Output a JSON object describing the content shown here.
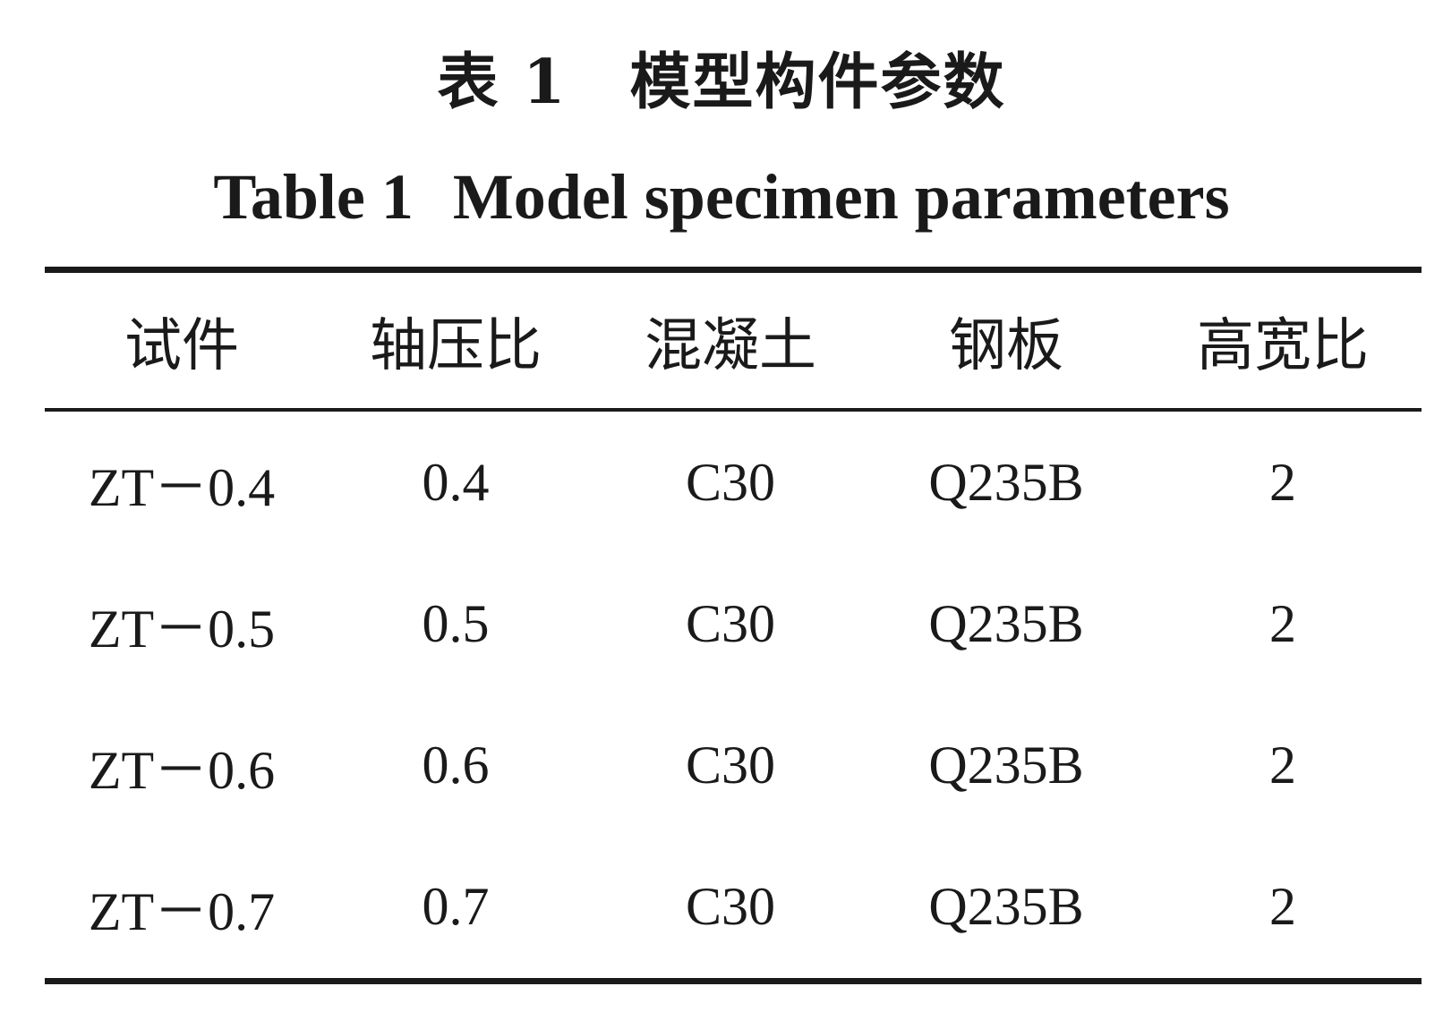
{
  "title": {
    "cn": "表 1　模型构件参数",
    "en_label": "Table 1",
    "en_text": "Model specimen parameters"
  },
  "table": {
    "headers": [
      "试件",
      "轴压比",
      "混凝土",
      "钢板",
      "高宽比"
    ],
    "rows": [
      [
        "ZT－0.4",
        "0.4",
        "C30",
        "Q235B",
        "2"
      ],
      [
        "ZT－0.5",
        "0.5",
        "C30",
        "Q235B",
        "2"
      ],
      [
        "ZT－0.6",
        "0.6",
        "C30",
        "Q235B",
        "2"
      ],
      [
        "ZT－0.7",
        "0.7",
        "C30",
        "Q235B",
        "2"
      ]
    ]
  }
}
